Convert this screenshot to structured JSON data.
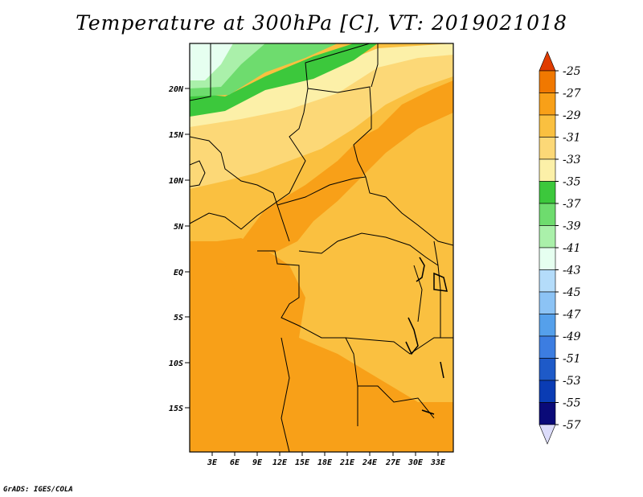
{
  "title": "Temperature at 300hPa [C], VT: 2019021018",
  "credit": "GrADS: IGES/COLA",
  "map": {
    "lat_ticks": [
      "20N",
      "15N",
      "10N",
      "5N",
      "EQ",
      "5S",
      "10S",
      "15S"
    ],
    "lon_ticks": [
      "3E",
      "6E",
      "9E",
      "12E",
      "15E",
      "18E",
      "21E",
      "24E",
      "27E",
      "30E",
      "33E"
    ]
  },
  "colorbar": {
    "levels": [
      "-25",
      "-27",
      "-29",
      "-31",
      "-33",
      "-35",
      "-37",
      "-39",
      "-41",
      "-43",
      "-45",
      "-47",
      "-49",
      "-51",
      "-53",
      "-55",
      "-57"
    ],
    "colors": [
      "#e03c00",
      "#f07800",
      "#f8a018",
      "#fac040",
      "#fcd877",
      "#fcf0a8",
      "#3cc83c",
      "#6edc6e",
      "#aaf0aa",
      "#e6fff0",
      "#b4dcfa",
      "#8cc3f5",
      "#55a0eb",
      "#3c7de1",
      "#1e5ac8",
      "#0a3cb4",
      "#0a0a78",
      "#dcdcfa"
    ]
  },
  "field_colors": {
    "orange": "#f8a018",
    "light_orange": "#fac040",
    "yellow": "#fcd877",
    "pale_yellow": "#fcf0a8",
    "green_dark": "#3cc83c",
    "green": "#6edc6e",
    "green_light": "#aaf0aa",
    "white_cyan": "#e6fff0"
  }
}
